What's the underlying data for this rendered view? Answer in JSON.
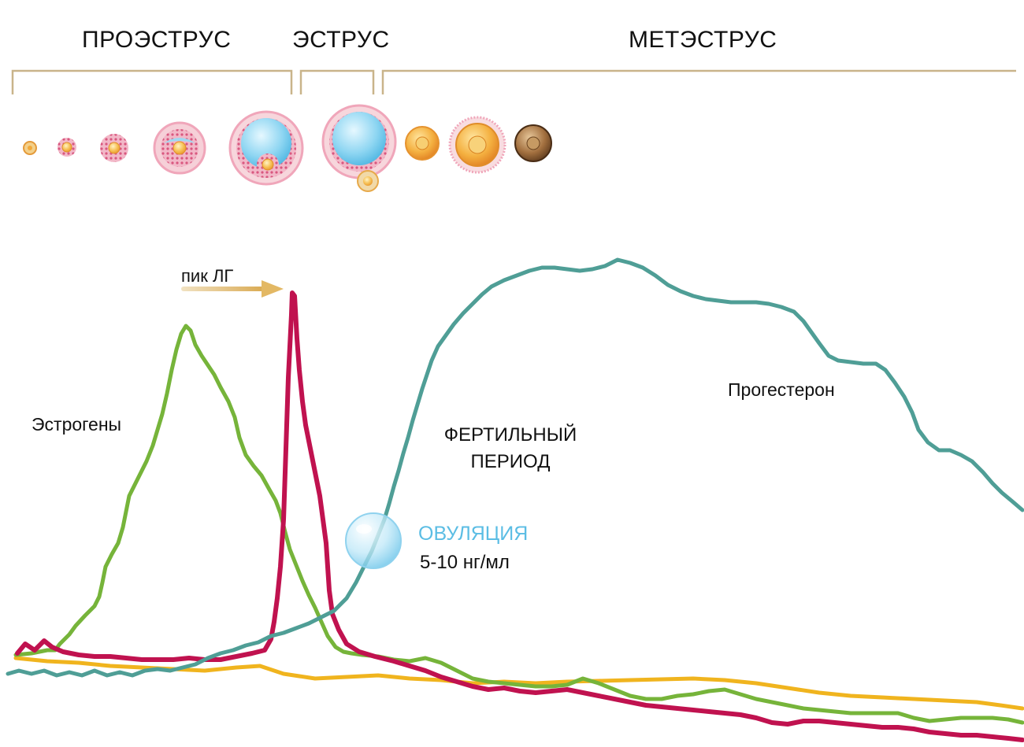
{
  "phases": {
    "proestrus": "ПРОЭСТРУС",
    "estrus": "ЭСТРУС",
    "metestrus": "МЕТЭСТРУС"
  },
  "labels": {
    "lh_peak": "пик ЛГ",
    "estrogens": "Эстрогены",
    "progesterone": "Прогестерон",
    "fertile_line1": "ФЕРТИЛЬНЫЙ",
    "fertile_line2": "ПЕРИОД",
    "ovulation": "ОВУЛЯЦИЯ",
    "ovulation_value": "5-10 нг/мл"
  },
  "colors": {
    "estrogen": "#76b43a",
    "lh": "#c0124f",
    "progesterone": "#4f9e96",
    "baseline": "#f0b41e",
    "bracket": "#c9b48a",
    "ovulation_text": "#5bbde4",
    "follicle_fluid": "#8fd6f2",
    "follicle_granulosa": "#e4608a",
    "oocyte": "#f4b23e"
  },
  "icons": {
    "follicles": [
      "primordial-follicle-icon",
      "primary-follicle-icon",
      "secondary-follicle-icon",
      "early-antral-follicle-icon",
      "graafian-follicle-icon",
      "ovulating-follicle-icon",
      "corpus-luteum-icon",
      "mature-corpus-luteum-icon",
      "corpus-albicans-icon"
    ],
    "ovulation_marker": "ovulation-bubble-icon",
    "lh_arrow": "arrow-right-icon"
  }
}
